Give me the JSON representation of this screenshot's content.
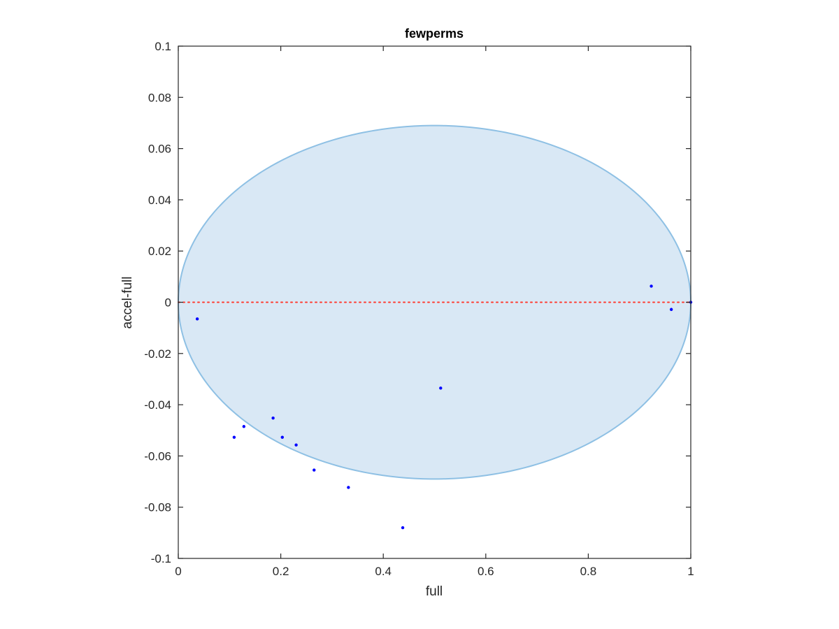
{
  "chart_data": {
    "type": "scatter",
    "title": "fewperms",
    "xlabel": "full",
    "ylabel": "accel-full",
    "xlim": [
      0,
      1
    ],
    "ylim": [
      -0.1,
      0.1
    ],
    "xticks": [
      0,
      0.2,
      0.4,
      0.6,
      0.8,
      1
    ],
    "xtick_labels": [
      "0",
      "0.2",
      "0.4",
      "0.6",
      "0.8",
      "1"
    ],
    "yticks": [
      0.1,
      0.08,
      0.06,
      0.04,
      0.02,
      0,
      -0.02,
      -0.04,
      -0.06,
      -0.08,
      -0.1
    ],
    "ytick_labels": [
      "0.1",
      "0.08",
      "0.06",
      "0.04",
      "0.02",
      "0",
      "-0.02",
      "-0.04",
      "-0.06",
      "-0.08",
      "-0.1"
    ],
    "grid": false,
    "ellipse": {
      "center": [
        0.5,
        0
      ],
      "x_radius": 0.5,
      "y_radius": 0.069,
      "x_range": [
        0,
        1
      ],
      "fill_color": "#d9e8f5",
      "edge_color": "#8ec0e4"
    },
    "reference_line": {
      "y": 0,
      "style": "dotted",
      "color": "#ff3b30"
    },
    "series": [
      {
        "marker_color": "#0000ff",
        "points": [
          {
            "x": 0.037,
            "y": -0.0065
          },
          {
            "x": 0.109,
            "y": -0.0527
          },
          {
            "x": 0.128,
            "y": -0.0485
          },
          {
            "x": 0.185,
            "y": -0.0452
          },
          {
            "x": 0.203,
            "y": -0.0527
          },
          {
            "x": 0.23,
            "y": -0.0557
          },
          {
            "x": 0.265,
            "y": -0.0655
          },
          {
            "x": 0.332,
            "y": -0.0723
          },
          {
            "x": 0.438,
            "y": -0.088
          },
          {
            "x": 0.512,
            "y": -0.0335
          },
          {
            "x": 0.923,
            "y": 0.0063
          },
          {
            "x": 0.962,
            "y": -0.0028
          },
          {
            "x": 1.0,
            "y": 0.0
          }
        ]
      }
    ]
  }
}
